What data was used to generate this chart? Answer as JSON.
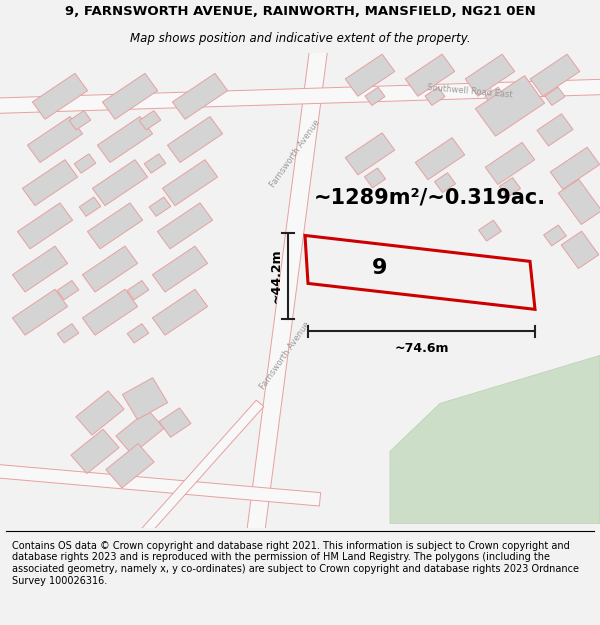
{
  "title_line1": "9, FARNSWORTH AVENUE, RAINWORTH, MANSFIELD, NG21 0EN",
  "title_line2": "Map shows position and indicative extent of the property.",
  "area_text": "~1289m²/~0.319ac.",
  "width_label": "~74.6m",
  "height_label": "~44.2m",
  "plot_number": "9",
  "street_label_farnsworth": "Farnsworth Avenue",
  "street_label_farnsworth2": "Farnsworth Avenue",
  "road_label_southwell": "Southwell Road East",
  "footer_text": "Contains OS data © Crown copyright and database right 2021. This information is subject to Crown copyright and database rights 2023 and is reproduced with the permission of HM Land Registry. The polygons (including the associated geometry, namely x, y co-ordinates) are subject to Crown copyright and database rights 2023 Ordnance Survey 100026316.",
  "bg_color": "#f2f2f2",
  "map_bg": "#ffffff",
  "green_color": "#cddec8",
  "plot_color": "#cc0000",
  "bld_fill": "#d4d4d4",
  "bld_edge": "#e8a0a0",
  "road_edge": "#e8a0a0",
  "dim_color": "#222222",
  "title_fontsize": 9.5,
  "subtitle_fontsize": 8.5,
  "area_fontsize": 15,
  "label_fontsize": 9,
  "number_fontsize": 16,
  "footer_fontsize": 7.0,
  "street_fontsize": 6.0
}
